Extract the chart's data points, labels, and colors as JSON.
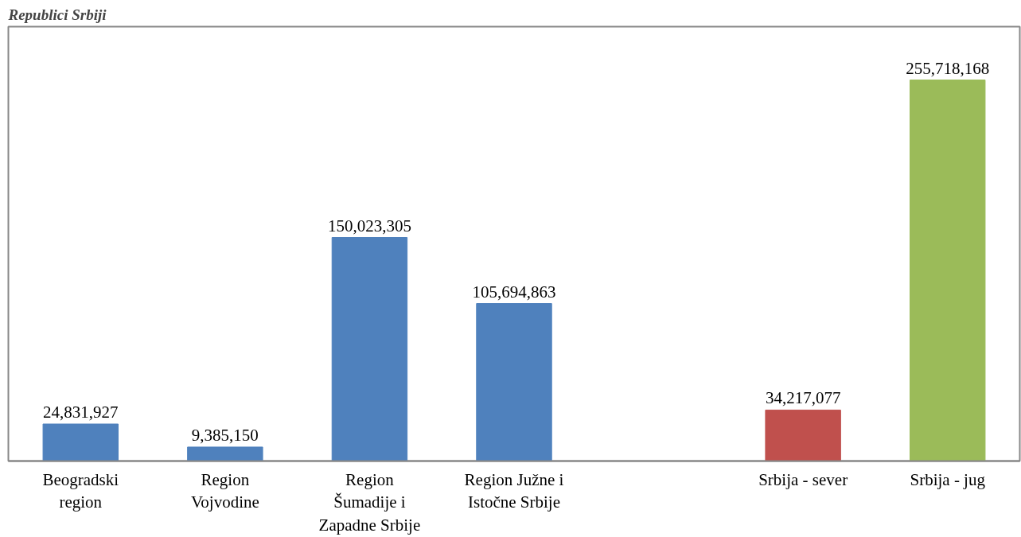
{
  "chart_data": {
    "type": "bar",
    "title": "Republici Srbiji",
    "categories": [
      "Beogradski region",
      "Region Vojvodine",
      "Region Šumadije i Zapadne Srbije",
      "Region Južne i Istočne Srbije",
      null,
      "Srbija - sever",
      "Srbija - jug"
    ],
    "values": [
      24831927,
      9385150,
      150023305,
      105694863,
      null,
      34217077,
      255718168
    ],
    "colors": [
      "#4f81bd",
      "#4f81bd",
      "#4f81bd",
      "#4f81bd",
      "#4f81bd",
      "#c0504d",
      "#9bbb59"
    ],
    "value_labels": [
      "24,831,927",
      "9,385,150",
      "150,023,305",
      "105,694,863",
      null,
      "34,217,077",
      "255,718,168"
    ],
    "grid": false
  }
}
